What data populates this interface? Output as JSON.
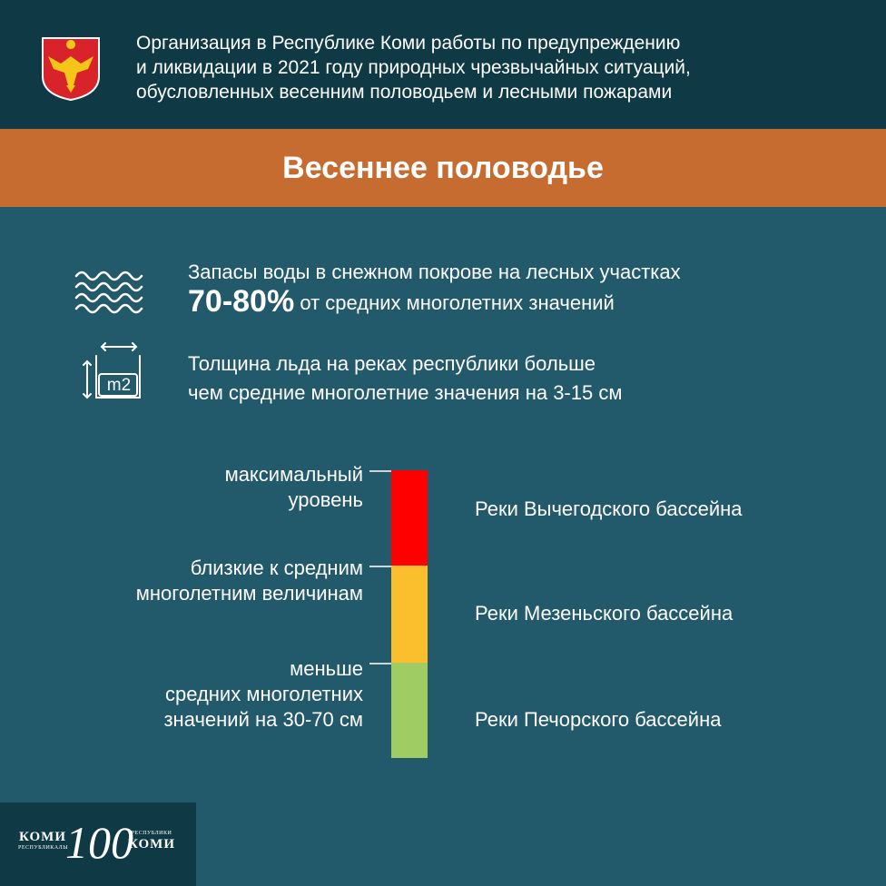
{
  "header": {
    "title_lines": [
      "Организация в Республике Коми работы по предупреждению",
      "и ликвидации в 2021 году природных чрезвычайных ситуаций,",
      "обусловленных весенним половодьем и лесными пожарами"
    ],
    "coat_of_arms_icon": "komi-coat-of-arms-icon"
  },
  "banner": {
    "title": "Весеннее половодье"
  },
  "facts": [
    {
      "icon": "water-waves-icon",
      "line1": "Запасы воды в снежном покрове на лесных участках",
      "highlight": "70-80%",
      "line2_rest": "от средних многолетних значений"
    },
    {
      "icon": "area-m2-icon",
      "icon_text": "m2",
      "line1": "Толщина льда на реках республики больше",
      "line2": "чем средние многолетние значения на 3-15 см"
    }
  ],
  "scale": {
    "levels": [
      {
        "label_lines": [
          "максимальный",
          "уровень"
        ],
        "color": "#ff0000",
        "basin": "Реки Вычегодского бассейна"
      },
      {
        "label_lines": [
          "близкие к средним",
          "многолетним величинам"
        ],
        "color": "#fbbf2d",
        "basin": "Реки Мезеньского бассейна"
      },
      {
        "label_lines": [
          "меньше",
          "средних многолетних",
          "значений на 30-70 см"
        ],
        "color": "#9fcd63",
        "basin": "Реки Печорского бассейна"
      }
    ]
  },
  "logo": {
    "left_word": "КОМИ",
    "left_small": "РЕСПУБЛИКАЛЫ",
    "number": "100",
    "right_small": "РЕСПУБЛИКИ",
    "right_word": "КОМИ"
  }
}
